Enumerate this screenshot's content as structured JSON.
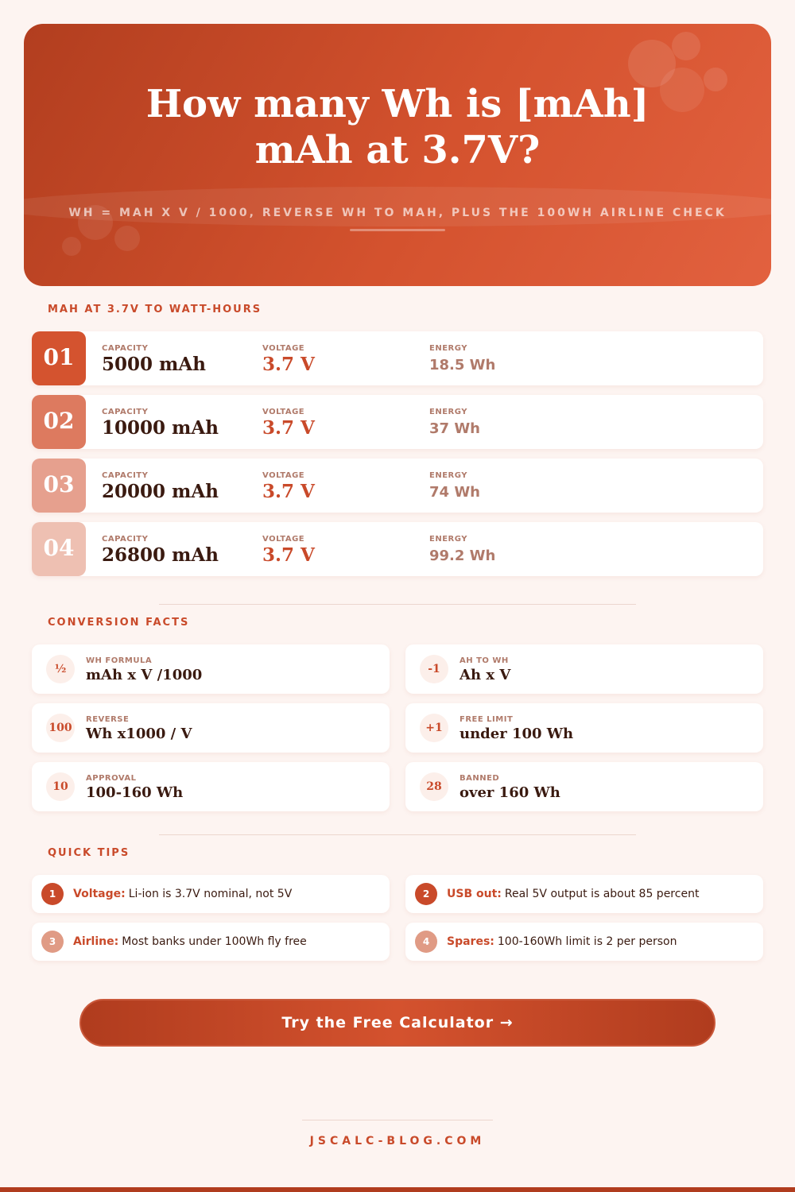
{
  "header": {
    "title": "How many Wh is [mAh] mAh at 3.7V?",
    "subtitle": "WH = MAH X V / 1000, REVERSE WH TO MAH, PLUS THE 100WH AIRLINE CHECK"
  },
  "conversions": {
    "heading": "MAH AT 3.7V TO WATT-HOURS",
    "rows": [
      {
        "index": "01",
        "capacity_label": "CAPACITY",
        "capacity": "5000 mAh",
        "voltage_label": "VOLTAGE",
        "voltage": "3.7 V",
        "energy_label": "ENERGY",
        "energy": "18.5 Wh"
      },
      {
        "index": "02",
        "capacity_label": "CAPACITY",
        "capacity": "10000 mAh",
        "voltage_label": "VOLTAGE",
        "voltage": "3.7 V",
        "energy_label": "ENERGY",
        "energy": "37 Wh"
      },
      {
        "index": "03",
        "capacity_label": "CAPACITY",
        "capacity": "20000 mAh",
        "voltage_label": "VOLTAGE",
        "voltage": "3.7 V",
        "energy_label": "ENERGY",
        "energy": "74 Wh"
      },
      {
        "index": "04",
        "capacity_label": "CAPACITY",
        "capacity": "26800 mAh",
        "voltage_label": "VOLTAGE",
        "voltage": "3.7 V",
        "energy_label": "ENERGY",
        "energy": "99.2 Wh"
      }
    ]
  },
  "facts": {
    "heading": "CONVERSION FACTS",
    "items": [
      {
        "icon": "½",
        "label": "WH FORMULA",
        "value": "mAh x V /1000"
      },
      {
        "icon": "-1",
        "label": "AH TO WH",
        "value": "Ah x V"
      },
      {
        "icon": "100",
        "label": "REVERSE",
        "value": "Wh x1000 / V"
      },
      {
        "icon": "+1",
        "label": "FREE LIMIT",
        "value": "under 100 Wh"
      },
      {
        "icon": "10",
        "label": "APPROVAL",
        "value": "100-160 Wh"
      },
      {
        "icon": "28",
        "label": "BANNED",
        "value": "over 160 Wh"
      }
    ]
  },
  "tips": {
    "heading": "QUICK TIPS",
    "items": [
      {
        "number": "1",
        "label": "Voltage:",
        "text": "Li-ion is 3.7V nominal, not 5V"
      },
      {
        "number": "2",
        "label": "USB out:",
        "text": "Real 5V output is about 85 percent"
      },
      {
        "number": "3",
        "label": "Airline:",
        "text": "Most banks under 100Wh fly free"
      },
      {
        "number": "4",
        "label": "Spares:",
        "text": "100-160Wh limit is 2 per person"
      }
    ]
  },
  "cta": "Try the Free Calculator →",
  "footer": "JSCALC-BLOG.COM"
}
